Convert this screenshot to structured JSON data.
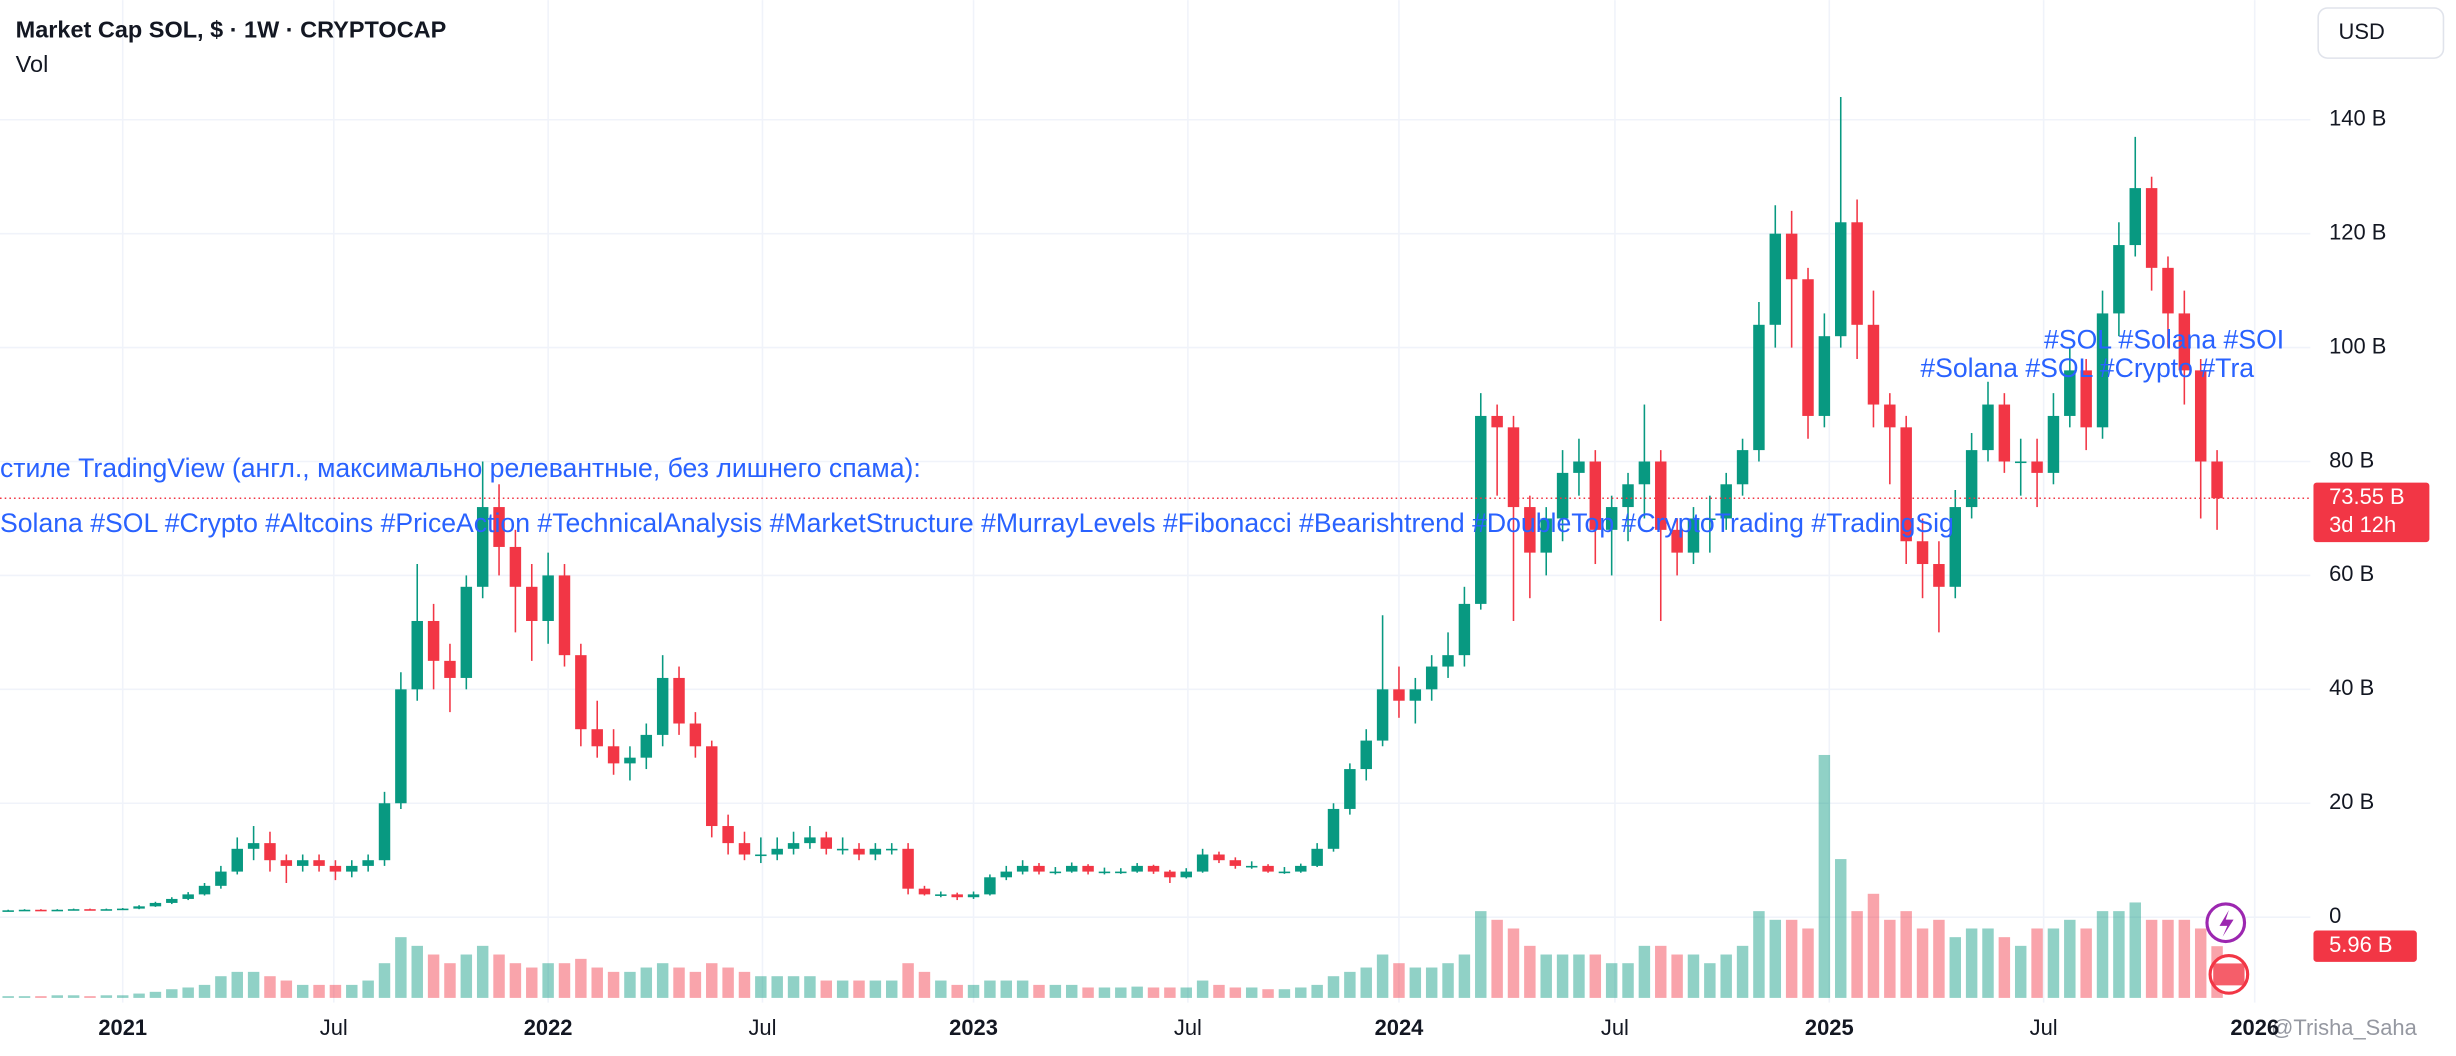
{
  "chart_data": {
    "type": "candlestick",
    "title": "Market Cap SOL, $ · 1W · CRYPTOCAP",
    "currency": "USD",
    "watermark": "@Trisha_Saha",
    "xlim": [
      -0.5,
      140.7
    ],
    "xticks": [
      {
        "value": 7,
        "label": "2021"
      },
      {
        "value": 19.9,
        "label": "Jul"
      },
      {
        "value": 33,
        "label": "2022"
      },
      {
        "value": 46.1,
        "label": "Jul"
      },
      {
        "value": 59,
        "label": "2023"
      },
      {
        "value": 72.1,
        "label": "Jul"
      },
      {
        "value": 85,
        "label": "2024"
      },
      {
        "value": 98.2,
        "label": "Jul"
      },
      {
        "value": 111.3,
        "label": "2025"
      },
      {
        "value": 124.4,
        "label": "Jul"
      },
      {
        "value": 137.3,
        "label": "2026"
      }
    ],
    "ylim": [
      -15,
      161
    ],
    "yticks": [
      0,
      {
        "value": 20,
        "label": "20 B"
      },
      {
        "value": 40,
        "label": "40 B"
      },
      {
        "value": 60,
        "label": "60 B"
      },
      {
        "value": 80,
        "label": "80 B"
      },
      {
        "value": 100,
        "label": "100 B"
      },
      {
        "value": 120,
        "label": "120 B"
      },
      {
        "value": 140,
        "label": "140 B"
      }
    ],
    "y2lim": [
      0,
      115
    ],
    "grid": true,
    "up_color": "#089981",
    "down_color": "#f23645",
    "volume_up_color": "rgba(8,153,129,0.45)",
    "volume_down_color": "rgba(242,54,69,0.45)",
    "last_price": {
      "value": 73.55,
      "label": "73.55 B"
    },
    "countdown": "3d 12h",
    "last_volume": {
      "value": 5.96,
      "label": "5.96 B"
    },
    "annotations": [
      "стиле TradingView (англ., максимально релевантные, без лишнего спама):",
      "Solana #SOL #Crypto #Altcoins #PriceAction #TechnicalAnalysis #MarketStructure #MurrayLevels #Fibonacci #Bearishtrend #DoubleTop #CryptoTrading #TradingSig",
      "#Solana #SOL #Crypto #Tra",
      "#SOL #Solana #SOI"
    ],
    "series": [
      {
        "values": [
          [
            1.1,
            1.3,
            1.0,
            1.2
          ],
          [
            1.2,
            1.4,
            1.1,
            1.3
          ],
          [
            1.3,
            1.4,
            1.1,
            1.2
          ],
          [
            1.2,
            1.4,
            1.1,
            1.3
          ],
          [
            1.3,
            1.5,
            1.2,
            1.4
          ],
          [
            1.4,
            1.5,
            1.2,
            1.3
          ],
          [
            1.3,
            1.5,
            1.2,
            1.4
          ],
          [
            1.4,
            1.6,
            1.3,
            1.5
          ],
          [
            1.5,
            2.1,
            1.4,
            1.9
          ],
          [
            1.9,
            2.7,
            1.8,
            2.5
          ],
          [
            2.5,
            3.5,
            2.3,
            3.2
          ],
          [
            3.2,
            4.4,
            3.0,
            4.0
          ],
          [
            4.0,
            6.0,
            3.8,
            5.5
          ],
          [
            5.5,
            9,
            5,
            8
          ],
          [
            8,
            14,
            7.5,
            12
          ],
          [
            12,
            16,
            10,
            13
          ],
          [
            13,
            15,
            8,
            10
          ],
          [
            10,
            11,
            6,
            9
          ],
          [
            9,
            11,
            8,
            10
          ],
          [
            10,
            11,
            8,
            9
          ],
          [
            9,
            10,
            6.5,
            8
          ],
          [
            8,
            10,
            7,
            9
          ],
          [
            9,
            11,
            8,
            10
          ],
          [
            10,
            22,
            9,
            20
          ],
          [
            20,
            43,
            19,
            40
          ],
          [
            40,
            62,
            38,
            52
          ],
          [
            52,
            55,
            40,
            45
          ],
          [
            45,
            48,
            36,
            42
          ],
          [
            42,
            60,
            40,
            58
          ],
          [
            58,
            80,
            56,
            72
          ],
          [
            72,
            76,
            60,
            65
          ],
          [
            65,
            68,
            50,
            58
          ],
          [
            58,
            62,
            45,
            52
          ],
          [
            52,
            64,
            48,
            60
          ],
          [
            60,
            62,
            44,
            46
          ],
          [
            46,
            48,
            30,
            33
          ],
          [
            33,
            38,
            28,
            30
          ],
          [
            30,
            33,
            25,
            27
          ],
          [
            27,
            30,
            24,
            28
          ],
          [
            28,
            34,
            26,
            32
          ],
          [
            32,
            46,
            30,
            42
          ],
          [
            42,
            44,
            32,
            34
          ],
          [
            34,
            36,
            28,
            30
          ],
          [
            30,
            31,
            14,
            16
          ],
          [
            16,
            18,
            11,
            13
          ],
          [
            13,
            15,
            10,
            11
          ],
          [
            11,
            14,
            9.5,
            11
          ],
          [
            11,
            14,
            10,
            12
          ],
          [
            12,
            15,
            11,
            13
          ],
          [
            13,
            16,
            12,
            14
          ],
          [
            14,
            15,
            11,
            12
          ],
          [
            12,
            14,
            11,
            12
          ],
          [
            12,
            13,
            10,
            11
          ],
          [
            11,
            13,
            10,
            12
          ],
          [
            12,
            13,
            11,
            12
          ],
          [
            12,
            13,
            4,
            5
          ],
          [
            5,
            5.5,
            3.8,
            4
          ],
          [
            4,
            4.5,
            3.5,
            4
          ],
          [
            4,
            4.3,
            3,
            3.5
          ],
          [
            3.5,
            4.5,
            3.2,
            4
          ],
          [
            4,
            7.5,
            3.8,
            7
          ],
          [
            7,
            9,
            6.5,
            8
          ],
          [
            8,
            10,
            7.5,
            9
          ],
          [
            9,
            9.5,
            7.5,
            8
          ],
          [
            8,
            8.8,
            7.5,
            8
          ],
          [
            8,
            9.6,
            7.8,
            9
          ],
          [
            9,
            9.3,
            7.5,
            8
          ],
          [
            8,
            8.7,
            7.5,
            8
          ],
          [
            8,
            8.6,
            7.6,
            8
          ],
          [
            8,
            9.5,
            7.8,
            9
          ],
          [
            9,
            9.2,
            7.6,
            8
          ],
          [
            8,
            8.3,
            6,
            7
          ],
          [
            7,
            8.6,
            6.8,
            8
          ],
          [
            8,
            12,
            7.8,
            11
          ],
          [
            11,
            11.5,
            9.5,
            10
          ],
          [
            10,
            10.5,
            8.5,
            9
          ],
          [
            9,
            9.8,
            8.5,
            9
          ],
          [
            9,
            9.3,
            7.8,
            8
          ],
          [
            8,
            8.8,
            7.6,
            8
          ],
          [
            8,
            9.4,
            7.8,
            9
          ],
          [
            9,
            13,
            8.8,
            12
          ],
          [
            12,
            20,
            11.5,
            19
          ],
          [
            19,
            27,
            18,
            26
          ],
          [
            26,
            33,
            24,
            31
          ],
          [
            31,
            53,
            30,
            40
          ],
          [
            40,
            44,
            35,
            38
          ],
          [
            38,
            42,
            34,
            40
          ],
          [
            40,
            46,
            38,
            44
          ],
          [
            44,
            50,
            42,
            46
          ],
          [
            46,
            58,
            44,
            55
          ],
          [
            55,
            92,
            54,
            88
          ],
          [
            88,
            90,
            74,
            86
          ],
          [
            86,
            88,
            52,
            72
          ],
          [
            72,
            74,
            56,
            64
          ],
          [
            64,
            72,
            60,
            70
          ],
          [
            70,
            82,
            66,
            78
          ],
          [
            78,
            84,
            74,
            80
          ],
          [
            80,
            82,
            62,
            68
          ],
          [
            68,
            74,
            60,
            72
          ],
          [
            72,
            78,
            66,
            76
          ],
          [
            76,
            90,
            70,
            80
          ],
          [
            80,
            82,
            52,
            68
          ],
          [
            68,
            70,
            60,
            64
          ],
          [
            64,
            72,
            62,
            70
          ],
          [
            70,
            74,
            64,
            70
          ],
          [
            70,
            78,
            68,
            76
          ],
          [
            76,
            84,
            74,
            82
          ],
          [
            82,
            108,
            80,
            104
          ],
          [
            104,
            125,
            100,
            120
          ],
          [
            120,
            124,
            100,
            112
          ],
          [
            112,
            114,
            84,
            88
          ],
          [
            88,
            106,
            86,
            102
          ],
          [
            102,
            144,
            100,
            122
          ],
          [
            122,
            126,
            98,
            104
          ],
          [
            104,
            110,
            86,
            90
          ],
          [
            90,
            92,
            76,
            86
          ],
          [
            86,
            88,
            62,
            66
          ],
          [
            66,
            70,
            56,
            62
          ],
          [
            62,
            66,
            50,
            58
          ],
          [
            58,
            75,
            56,
            72
          ],
          [
            72,
            85,
            70,
            82
          ],
          [
            82,
            94,
            80,
            90
          ],
          [
            90,
            92,
            78,
            80
          ],
          [
            80,
            84,
            74,
            80
          ],
          [
            80,
            84,
            72,
            78
          ],
          [
            78,
            92,
            76,
            88
          ],
          [
            88,
            100,
            86,
            96
          ],
          [
            96,
            98,
            82,
            86
          ],
          [
            86,
            110,
            84,
            106
          ],
          [
            106,
            122,
            102,
            118
          ],
          [
            118,
            137,
            116,
            128
          ],
          [
            128,
            130,
            110,
            114
          ],
          [
            114,
            116,
            100,
            106
          ],
          [
            106,
            110,
            90,
            96
          ],
          [
            96,
            98,
            70,
            80
          ],
          [
            80,
            82,
            68,
            73.55
          ]
        ]
      },
      {
        "name": "Vol",
        "type": "bar",
        "axis": "y2",
        "values": [
          0.2,
          0.2,
          0.2,
          0.3,
          0.3,
          0.2,
          0.3,
          0.3,
          0.5,
          0.7,
          1,
          1.2,
          1.5,
          2.5,
          3,
          3,
          2.5,
          2,
          1.5,
          1.5,
          1.5,
          1.5,
          2,
          4,
          7,
          6,
          5,
          4,
          5,
          6,
          5,
          4,
          3.5,
          4,
          4,
          4.5,
          3.5,
          3,
          3,
          3.5,
          4,
          3.5,
          3,
          4,
          3.5,
          3,
          2.5,
          2.5,
          2.5,
          2.5,
          2,
          2,
          2,
          2,
          2,
          4,
          3,
          2,
          1.5,
          1.5,
          2,
          2,
          2,
          1.5,
          1.5,
          1.5,
          1.2,
          1.2,
          1.2,
          1.3,
          1.2,
          1.2,
          1.2,
          2,
          1.5,
          1.2,
          1.2,
          1,
          1,
          1.2,
          1.5,
          2.5,
          3,
          3.5,
          5,
          4,
          3.5,
          3.5,
          4,
          5,
          10,
          9,
          8,
          6,
          5,
          5,
          5,
          5,
          4,
          4,
          6,
          6,
          5,
          5,
          4,
          5,
          6,
          10,
          9,
          9,
          8,
          28,
          16,
          10,
          12,
          9,
          10,
          8,
          9,
          7,
          8,
          8,
          7,
          6,
          8,
          8,
          9,
          8,
          10,
          10,
          11,
          9,
          9,
          9,
          8,
          5.96
        ]
      }
    ]
  }
}
